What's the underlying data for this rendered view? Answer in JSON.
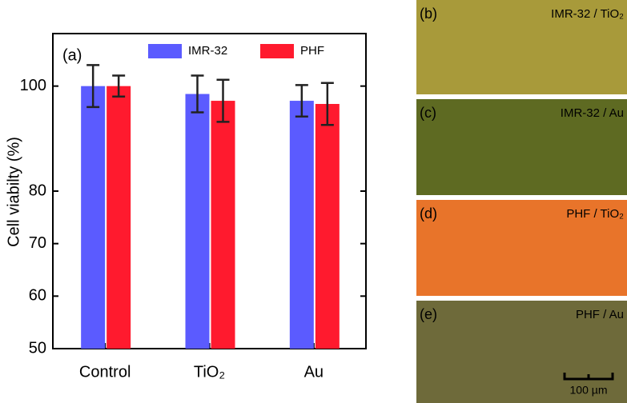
{
  "chart_data": {
    "type": "bar",
    "panel_label": "(a)",
    "y_label": "Cell viabilty  (%)",
    "categories": [
      "Control",
      "TiO₂",
      "Au"
    ],
    "series": [
      {
        "name": "IMR-32",
        "color": "#5b5bff",
        "values": [
          100,
          98.5,
          97.2
        ],
        "errors": [
          4,
          3.5,
          3
        ]
      },
      {
        "name": "PHF",
        "color": "#ff1a2e",
        "values": [
          100,
          97.2,
          96.6
        ],
        "errors": [
          2,
          4,
          4
        ]
      }
    ],
    "ylim": [
      50,
      110
    ],
    "yticks": [
      50,
      60,
      70,
      80,
      100
    ]
  },
  "images": [
    {
      "label": "(b)",
      "caption": "IMR-32 / TiO₂",
      "color": "#a89a3a"
    },
    {
      "label": "(c)",
      "caption": "IMR-32 / Au",
      "color": "#5e6a22"
    },
    {
      "label": "(d)",
      "caption": "PHF / TiO₂",
      "color": "#e8742a"
    },
    {
      "label": "(e)",
      "caption": "PHF / Au",
      "color": "#6e6a3a",
      "scale_bar": "100 µm"
    }
  ]
}
